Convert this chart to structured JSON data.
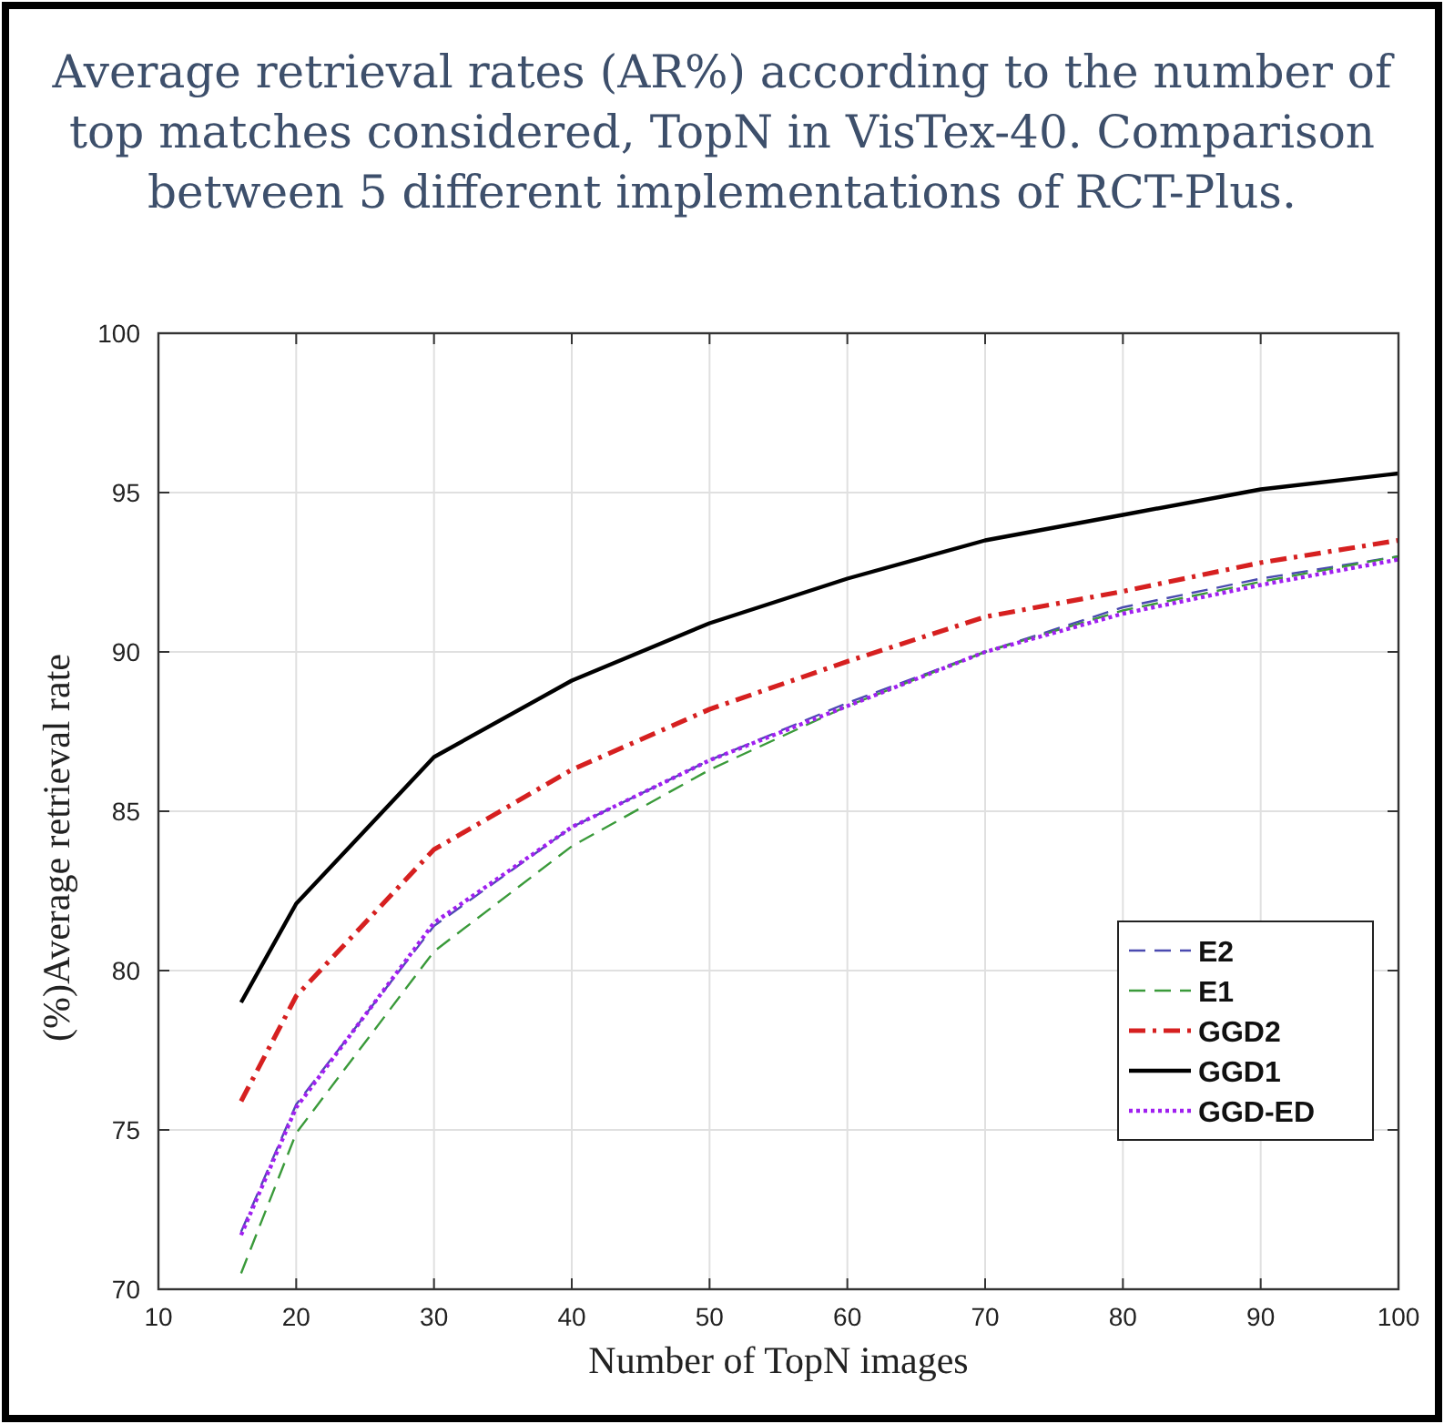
{
  "chart_data": {
    "type": "line",
    "title": "Average retrieval rates (AR%) according to the number of top matches considered, TopN in VisTex-40. Comparison between 5 different implementations of RCT-Plus.",
    "xlabel": "Number of TopN images",
    "ylabel": "(%)Average retrieval rate",
    "x": [
      16,
      20,
      30,
      40,
      50,
      60,
      70,
      80,
      90,
      100
    ],
    "series": [
      {
        "name": "E2",
        "color": "#4a4ab0",
        "line_style": "dashed",
        "values": [
          71.8,
          75.8,
          81.4,
          84.5,
          86.6,
          88.4,
          90.0,
          91.4,
          92.3,
          93.0
        ]
      },
      {
        "name": "E1",
        "color": "#3a9a3a",
        "line_style": "dashed",
        "values": [
          70.5,
          74.9,
          80.6,
          83.9,
          86.3,
          88.3,
          90.0,
          91.3,
          92.2,
          93.0
        ]
      },
      {
        "name": "GGD2",
        "color": "#d62020",
        "line_style": "dashdot",
        "values": [
          75.9,
          79.2,
          83.8,
          86.3,
          88.2,
          89.7,
          91.1,
          91.9,
          92.8,
          93.5
        ]
      },
      {
        "name": "GGD1",
        "color": "#000000",
        "line_style": "solid",
        "values": [
          79.0,
          82.1,
          86.7,
          89.1,
          90.9,
          92.3,
          93.5,
          94.3,
          95.1,
          95.6
        ]
      },
      {
        "name": "GGD-ED",
        "color": "#a020f0",
        "line_style": "dotted",
        "values": [
          71.7,
          75.7,
          81.5,
          84.5,
          86.6,
          88.3,
          90.0,
          91.2,
          92.1,
          92.9
        ]
      }
    ],
    "xlim": [
      10,
      100
    ],
    "xticks": [
      10,
      20,
      30,
      40,
      50,
      60,
      70,
      80,
      90,
      100
    ],
    "ylim": [
      70,
      100
    ],
    "yticks": [
      70,
      75,
      80,
      85,
      90,
      95,
      100
    ],
    "grid": true,
    "legend": "bottom right",
    "marker": "none"
  }
}
